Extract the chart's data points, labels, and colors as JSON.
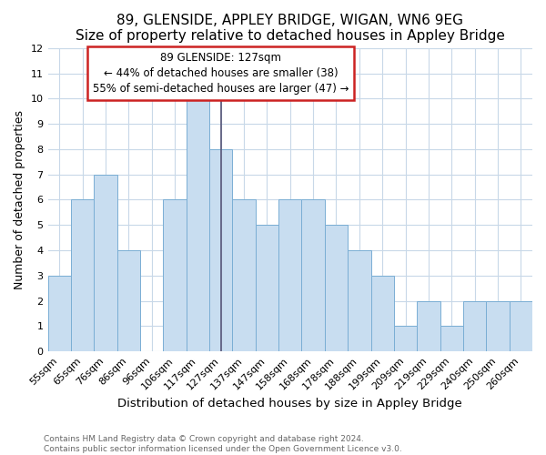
{
  "title": "89, GLENSIDE, APPLEY BRIDGE, WIGAN, WN6 9EG",
  "subtitle": "Size of property relative to detached houses in Appley Bridge",
  "xlabel": "Distribution of detached houses by size in Appley Bridge",
  "ylabel": "Number of detached properties",
  "categories": [
    "55sqm",
    "65sqm",
    "76sqm",
    "86sqm",
    "96sqm",
    "106sqm",
    "117sqm",
    "127sqm",
    "137sqm",
    "147sqm",
    "158sqm",
    "168sqm",
    "178sqm",
    "188sqm",
    "199sqm",
    "209sqm",
    "219sqm",
    "229sqm",
    "240sqm",
    "250sqm",
    "260sqm"
  ],
  "values": [
    3,
    6,
    7,
    4,
    0,
    6,
    10,
    8,
    6,
    5,
    6,
    6,
    5,
    4,
    3,
    1,
    2,
    1,
    2,
    2,
    2
  ],
  "bar_color": "#c8ddf0",
  "bar_edge_color": "#7aaed4",
  "vline_color": "#555577",
  "vline_index": 7,
  "annotation_label": "89 GLENSIDE: 127sqm",
  "annotation_line1": "← 44% of detached houses are smaller (38)",
  "annotation_line2": "55% of semi-detached houses are larger (47) →",
  "annotation_box_facecolor": "#ffffff",
  "annotation_box_edgecolor": "#cc2222",
  "ylim": [
    0,
    12
  ],
  "yticks": [
    0,
    1,
    2,
    3,
    4,
    5,
    6,
    7,
    8,
    9,
    10,
    11,
    12
  ],
  "title_fontsize": 11,
  "subtitle_fontsize": 10,
  "xlabel_fontsize": 9.5,
  "ylabel_fontsize": 9,
  "tick_fontsize": 8,
  "annot_fontsize": 8.5,
  "footer_line1": "Contains HM Land Registry data © Crown copyright and database right 2024.",
  "footer_line2": "Contains public sector information licensed under the Open Government Licence v3.0.",
  "background_color": "#ffffff",
  "plot_bg_color": "#ffffff",
  "grid_color": "#c8d8e8"
}
